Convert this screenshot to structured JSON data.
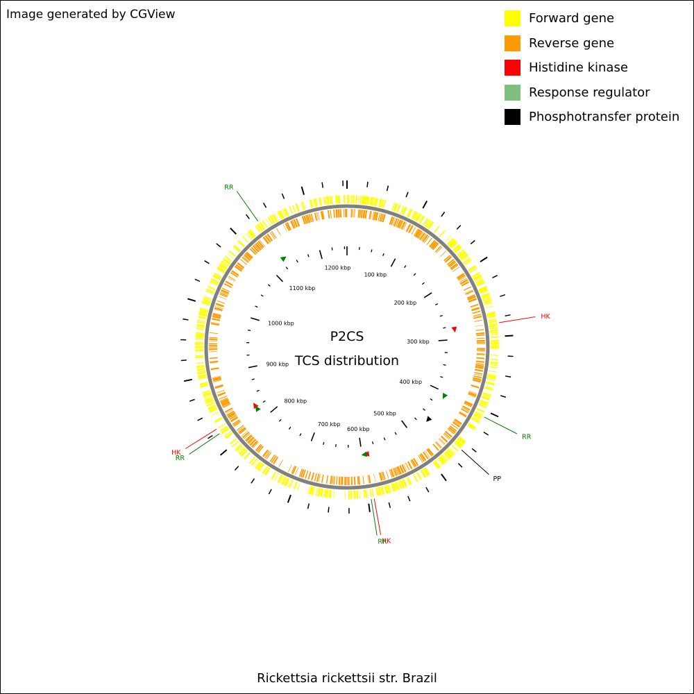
{
  "credit": "Image generated by CGView",
  "caption": "Rickettsia rickettsii str. Brazil",
  "legend": [
    {
      "label": "Forward gene",
      "color": "#ffff00"
    },
    {
      "label": "Reverse gene",
      "color": "#ff9a00"
    },
    {
      "label": "Histidine kinase",
      "color": "#ff0000"
    },
    {
      "label": "Response regulator",
      "color": "#7fbf7f"
    },
    {
      "label": "Phosphotransfer protein",
      "color": "#000000"
    }
  ],
  "map": {
    "title": "P2CS",
    "subtitle": "TCS distribution",
    "genome_length_kbp": 1255,
    "backbone_color": "#808080",
    "tick_labels": [
      {
        "text": "100 kbp",
        "kbp": 100
      },
      {
        "text": "200 kbp",
        "kbp": 200
      },
      {
        "text": "300 kbp",
        "kbp": 300
      },
      {
        "text": "400 kbp",
        "kbp": 400
      },
      {
        "text": "500 kbp",
        "kbp": 500
      },
      {
        "text": "600 kbp",
        "kbp": 600
      },
      {
        "text": "700 kbp",
        "kbp": 700
      },
      {
        "text": "800 kbp",
        "kbp": 800
      },
      {
        "text": "900 kbp",
        "kbp": 900
      },
      {
        "text": "1000 kbp",
        "kbp": 1000
      },
      {
        "text": "1100 kbp",
        "kbp": 1100
      },
      {
        "text": "1200 kbp",
        "kbp": 1200
      }
    ],
    "features": [
      {
        "label": "HK",
        "type": "Histidine kinase",
        "kbp": 282,
        "color": "#ff0000"
      },
      {
        "label": "RR",
        "type": "Response regulator",
        "kbp": 408,
        "color": "#008000"
      },
      {
        "label": "PP",
        "type": "Phosphotransfer protein",
        "kbp": 460,
        "color": "#000000"
      },
      {
        "label": "HK",
        "type": "Histidine kinase",
        "kbp": 592,
        "color": "#ff0000"
      },
      {
        "label": "RR",
        "type": "Response regulator",
        "kbp": 596,
        "color": "#008000"
      },
      {
        "label": "HK",
        "type": "Histidine kinase",
        "kbp": 829,
        "color": "#ff0000"
      },
      {
        "label": "RR",
        "type": "Response regulator",
        "kbp": 822,
        "color": "#008000"
      },
      {
        "label": "RR",
        "type": "Response regulator",
        "kbp": 1132,
        "color": "#008000"
      }
    ]
  }
}
